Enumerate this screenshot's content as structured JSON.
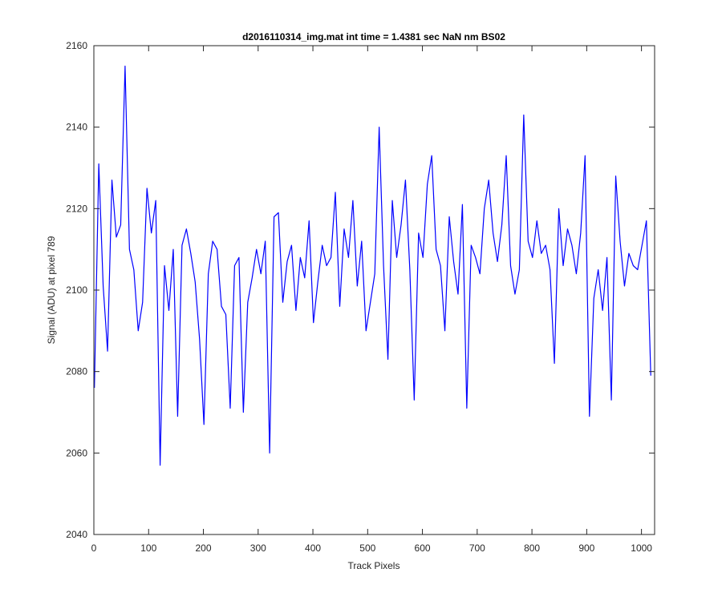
{
  "chart_data": {
    "type": "line",
    "title": "d2016110314_img.mat int time = 1.4381 sec  NaN nm BS02",
    "xlabel": "Track Pixels",
    "ylabel": "Signal (ADU) at pixel 789",
    "xlim": [
      0,
      1024
    ],
    "ylim": [
      2040,
      2160
    ],
    "xticks": [
      0,
      100,
      200,
      300,
      400,
      500,
      600,
      700,
      800,
      900,
      1000
    ],
    "yticks": [
      2040,
      2060,
      2080,
      2100,
      2120,
      2140,
      2160
    ],
    "grid": false,
    "legend": "none",
    "series": [
      {
        "color": "#0000ff",
        "x_start": 1,
        "x_step": 8,
        "values": [
          2076,
          2131,
          2101,
          2085,
          2127,
          2113,
          2116,
          2155,
          2110,
          2105,
          2090,
          2097,
          2125,
          2114,
          2122,
          2057,
          2106,
          2095,
          2110,
          2069,
          2111,
          2115,
          2109,
          2102,
          2088,
          2067,
          2104,
          2112,
          2110,
          2096,
          2094,
          2071,
          2106,
          2108,
          2070,
          2097,
          2103,
          2110,
          2104,
          2112,
          2060,
          2118,
          2119,
          2097,
          2107,
          2111,
          2095,
          2108,
          2103,
          2117,
          2092,
          2102,
          2111,
          2106,
          2108,
          2124,
          2096,
          2115,
          2108,
          2122,
          2101,
          2112,
          2090,
          2097,
          2104,
          2140,
          2106,
          2083,
          2122,
          2108,
          2116,
          2127,
          2105,
          2073,
          2114,
          2108,
          2126,
          2133,
          2110,
          2106,
          2090,
          2118,
          2107,
          2099,
          2121,
          2071,
          2111,
          2108,
          2104,
          2120,
          2127,
          2114,
          2107,
          2116,
          2133,
          2106,
          2099,
          2105,
          2143,
          2112,
          2108,
          2117,
          2109,
          2111,
          2105,
          2082,
          2120,
          2106,
          2115,
          2111,
          2104,
          2114,
          2133,
          2069,
          2098,
          2105,
          2095,
          2108,
          2073,
          2128,
          2112,
          2101,
          2109,
          2106,
          2105,
          2111,
          2117,
          2079
        ]
      }
    ]
  }
}
